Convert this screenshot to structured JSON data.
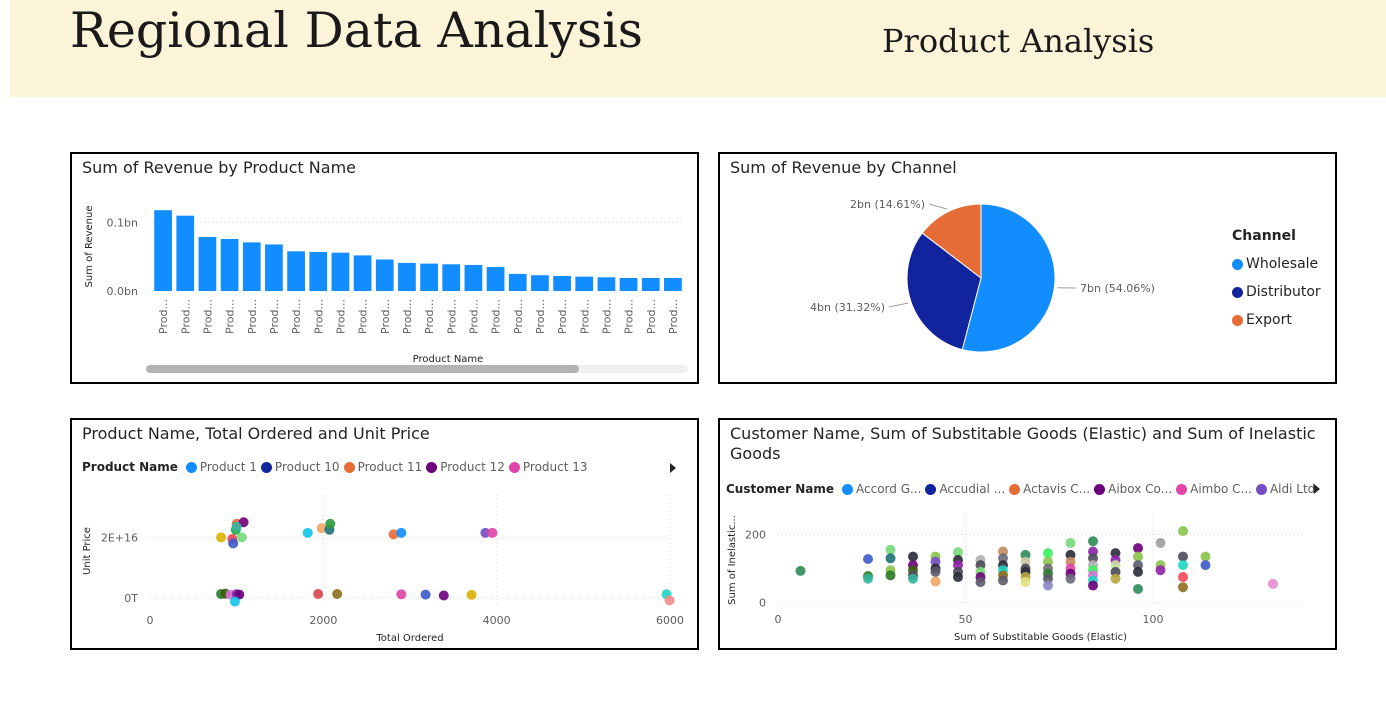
{
  "header": {
    "title": "Regional Data Analysis",
    "subtitle": "Product Analysis"
  },
  "colors": {
    "header_bg": "#fbf4d8",
    "bar": "#118DFF",
    "wholesale": "#118DFF",
    "distributor": "#12239E",
    "export": "#E66C37"
  },
  "chart_data": [
    {
      "type": "bar",
      "title": "Sum of Revenue by Product Name",
      "xlabel": "Product Name",
      "ylabel": "Sum of Revenue",
      "categories": [
        "Prod...",
        "Prod...",
        "Prod...",
        "Prod...",
        "Prod...",
        "Prod...",
        "Prod...",
        "Prod...",
        "Prod...",
        "Prod...",
        "Prod...",
        "Prod...",
        "Prod...",
        "Prod...",
        "Prod...",
        "Prod...",
        "Prod...",
        "Prod...",
        "Prod...",
        "Prod...",
        "Prod...",
        "Prod...",
        "Prod...",
        "Prod..."
      ],
      "values": [
        0.118,
        0.11,
        0.079,
        0.076,
        0.071,
        0.068,
        0.058,
        0.057,
        0.056,
        0.052,
        0.046,
        0.041,
        0.04,
        0.039,
        0.038,
        0.035,
        0.025,
        0.023,
        0.022,
        0.021,
        0.02,
        0.019,
        0.019,
        0.019
      ],
      "y_ticks": [
        {
          "v": 0,
          "label": "0.0bn"
        },
        {
          "v": 0.1,
          "label": "0.1bn"
        }
      ],
      "ylim": [
        0,
        0.13
      ]
    },
    {
      "type": "pie",
      "title": "Sum of Revenue by Channel",
      "legend_title": "Channel",
      "slices": [
        {
          "label": "Wholesale",
          "value": 54.06,
          "data_label": "7bn (54.06%)",
          "color": "#118DFF"
        },
        {
          "label": "Distributor",
          "value": 31.32,
          "data_label": "4bn (31.32%)",
          "color": "#12239E"
        },
        {
          "label": "Export",
          "value": 14.61,
          "data_label": "2bn (14.61%)",
          "color": "#E66C37"
        }
      ]
    },
    {
      "type": "scatter",
      "title": "Product Name, Total Ordered and Unit Price",
      "legend_title": "Product Name",
      "legend": [
        {
          "name": "Product 1",
          "color": "#118DFF"
        },
        {
          "name": "Product 10",
          "color": "#12239E"
        },
        {
          "name": "Product 11",
          "color": "#E66C37"
        },
        {
          "name": "Product 12",
          "color": "#6B007B"
        },
        {
          "name": "Product 13",
          "color": "#E044A7"
        }
      ],
      "xlabel": "Total Ordered",
      "ylabel": "Unit Price",
      "xlim": [
        0,
        6000
      ],
      "ylim": [
        -3000000000000000.0,
        3.4e+16
      ],
      "x_ticks": [
        {
          "v": 0,
          "label": "0"
        },
        {
          "v": 2000,
          "label": "2000"
        },
        {
          "v": 4000,
          "label": "4000"
        },
        {
          "v": 6000,
          "label": "6000"
        }
      ],
      "y_ticks": [
        {
          "v": 0,
          "label": "0T"
        },
        {
          "v": 2e+16,
          "label": "2E+16"
        }
      ],
      "points": [
        {
          "x": 820,
          "y": 2e+16,
          "c": "#D9B300"
        },
        {
          "x": 950,
          "y": 1.95e+16,
          "c": "#F5425A"
        },
        {
          "x": 960,
          "y": 1.8e+16,
          "c": "#3D5AC8"
        },
        {
          "x": 990,
          "y": 2.25e+16,
          "c": "#1AAB40"
        },
        {
          "x": 1000,
          "y": 2.45e+16,
          "c": "#E66C37"
        },
        {
          "x": 1080,
          "y": 2.5e+16,
          "c": "#6B007B"
        },
        {
          "x": 1060,
          "y": 2e+16,
          "c": "#76D97A"
        },
        {
          "x": 1000,
          "y": 2.35e+16,
          "c": "#36B6A0"
        },
        {
          "x": 1820,
          "y": 2.15e+16,
          "c": "#12C4E8"
        },
        {
          "x": 1980,
          "y": 2.3e+16,
          "c": "#F2A566"
        },
        {
          "x": 2070,
          "y": 2.25e+16,
          "c": "#197278"
        },
        {
          "x": 2080,
          "y": 2.45e+16,
          "c": "#2C9A3E"
        },
        {
          "x": 2810,
          "y": 2.1e+16,
          "c": "#E66C37"
        },
        {
          "x": 2900,
          "y": 2.15e+16,
          "c": "#118DFF"
        },
        {
          "x": 3870,
          "y": 2.15e+16,
          "c": "#744EC2"
        },
        {
          "x": 3950,
          "y": 2.15e+16,
          "c": "#E044A7"
        },
        {
          "x": 820,
          "y": 1300000000000000.0,
          "c": "#2C7A2C"
        },
        {
          "x": 870,
          "y": 1400000000000000.0,
          "c": "#3A5F0B"
        },
        {
          "x": 930,
          "y": 1100000000000000.0,
          "c": "#DA70D6"
        },
        {
          "x": 1000,
          "y": 1200000000000000.0,
          "c": "#8E24AA"
        },
        {
          "x": 1030,
          "y": 1100000000000000.0,
          "c": "#6B007B"
        },
        {
          "x": 980,
          "y": -1200000000000000.0,
          "c": "#12C4E8"
        },
        {
          "x": 1940,
          "y": 1300000000000000.0,
          "c": "#D64550"
        },
        {
          "x": 2160,
          "y": 1300000000000000.0,
          "c": "#8D6E1E"
        },
        {
          "x": 2900,
          "y": 1200000000000000.0,
          "c": "#E044A7"
        },
        {
          "x": 3180,
          "y": 1100000000000000.0,
          "c": "#3D5AC8"
        },
        {
          "x": 3390,
          "y": 800000000000000.0,
          "c": "#6B007B"
        },
        {
          "x": 3710,
          "y": 1000000000000000.0,
          "c": "#D9B300"
        },
        {
          "x": 5960,
          "y": 1200000000000000.0,
          "c": "#1DD6C4"
        },
        {
          "x": 5995,
          "y": -800000000000000.0,
          "c": "#F28B8B"
        }
      ]
    },
    {
      "type": "scatter",
      "title": "Customer Name, Sum of Substitable Goods (Elastic) and Sum of Inelastic Goods",
      "legend_title": "Customer Name",
      "legend": [
        {
          "name": "Accord G...",
          "color": "#118DFF"
        },
        {
          "name": "Accudial ...",
          "color": "#12239E"
        },
        {
          "name": "Actavis C...",
          "color": "#E66C37"
        },
        {
          "name": "Aibox Co...",
          "color": "#6B007B"
        },
        {
          "name": "Aimbo C...",
          "color": "#E044A7"
        },
        {
          "name": "Aldi Ltd",
          "color": "#744EC2"
        }
      ],
      "xlabel": "Sum of Substitable Goods (Elastic)",
      "ylabel": "Sum of Inelastic...",
      "xlim": [
        0,
        140
      ],
      "ylim": [
        -10,
        260
      ],
      "x_ticks": [
        {
          "v": 0,
          "label": "0"
        },
        {
          "v": 50,
          "label": "50"
        },
        {
          "v": 100,
          "label": "100"
        }
      ],
      "y_ticks": [
        {
          "v": 0,
          "label": "0"
        },
        {
          "v": 200,
          "label": "200"
        }
      ],
      "points": [
        {
          "x": 6,
          "y": 93,
          "c": "#2E8B57"
        },
        {
          "x": 24,
          "y": 128,
          "c": "#3D5AC8"
        },
        {
          "x": 24,
          "y": 78,
          "c": "#2C7A2C"
        },
        {
          "x": 24,
          "y": 70,
          "c": "#36B6A0"
        },
        {
          "x": 30,
          "y": 155,
          "c": "#76D97A"
        },
        {
          "x": 30,
          "y": 130,
          "c": "#197278"
        },
        {
          "x": 30,
          "y": 95,
          "c": "#8BC34A"
        },
        {
          "x": 30,
          "y": 80,
          "c": "#2C7A2C"
        },
        {
          "x": 36,
          "y": 135,
          "c": "#2B2B3A"
        },
        {
          "x": 36,
          "y": 110,
          "c": "#6B007B"
        },
        {
          "x": 36,
          "y": 95,
          "c": "#3A5F0B"
        },
        {
          "x": 36,
          "y": 80,
          "c": "#4A4A5A"
        },
        {
          "x": 36,
          "y": 70,
          "c": "#36B6A0"
        },
        {
          "x": 42,
          "y": 135,
          "c": "#8BC34A"
        },
        {
          "x": 42,
          "y": 120,
          "c": "#744EC2"
        },
        {
          "x": 42,
          "y": 100,
          "c": "#2B2B3A"
        },
        {
          "x": 42,
          "y": 90,
          "c": "#5A5A6A"
        },
        {
          "x": 42,
          "y": 62,
          "c": "#F2A566"
        },
        {
          "x": 48,
          "y": 148,
          "c": "#76D97A"
        },
        {
          "x": 48,
          "y": 125,
          "c": "#2B2B3A"
        },
        {
          "x": 48,
          "y": 110,
          "c": "#8E24AA"
        },
        {
          "x": 48,
          "y": 90,
          "c": "#4A4A5A"
        },
        {
          "x": 48,
          "y": 75,
          "c": "#2B2B3A"
        },
        {
          "x": 54,
          "y": 125,
          "c": "#B0B0B0"
        },
        {
          "x": 54,
          "y": 110,
          "c": "#4A4A5A"
        },
        {
          "x": 54,
          "y": 90,
          "c": "#76D97A"
        },
        {
          "x": 54,
          "y": 75,
          "c": "#6B007B"
        },
        {
          "x": 54,
          "y": 60,
          "c": "#5A5A6A"
        },
        {
          "x": 60,
          "y": 150,
          "c": "#C48A5A"
        },
        {
          "x": 60,
          "y": 130,
          "c": "#6B6B7B"
        },
        {
          "x": 60,
          "y": 110,
          "c": "#2B2B3A"
        },
        {
          "x": 60,
          "y": 95,
          "c": "#1DD6C4"
        },
        {
          "x": 60,
          "y": 80,
          "c": "#8D6E1E"
        },
        {
          "x": 60,
          "y": 65,
          "c": "#5A5A6A"
        },
        {
          "x": 66,
          "y": 140,
          "c": "#2E8B57"
        },
        {
          "x": 66,
          "y": 120,
          "c": "#C8C8A0"
        },
        {
          "x": 66,
          "y": 100,
          "c": "#4A4A5A"
        },
        {
          "x": 66,
          "y": 90,
          "c": "#2B2B3A"
        },
        {
          "x": 66,
          "y": 75,
          "c": "#B5A642"
        },
        {
          "x": 66,
          "y": 60,
          "c": "#E0E080"
        },
        {
          "x": 72,
          "y": 145,
          "c": "#3CF060"
        },
        {
          "x": 72,
          "y": 120,
          "c": "#8BC34A"
        },
        {
          "x": 72,
          "y": 100,
          "c": "#6B6B7B"
        },
        {
          "x": 72,
          "y": 85,
          "c": "#2C7A2C"
        },
        {
          "x": 72,
          "y": 70,
          "c": "#5A5A6A"
        },
        {
          "x": 72,
          "y": 50,
          "c": "#8888C8"
        },
        {
          "x": 78,
          "y": 175,
          "c": "#76D97A"
        },
        {
          "x": 78,
          "y": 140,
          "c": "#2B2B3A"
        },
        {
          "x": 78,
          "y": 120,
          "c": "#C48A5A"
        },
        {
          "x": 78,
          "y": 100,
          "c": "#E044A7"
        },
        {
          "x": 78,
          "y": 85,
          "c": "#6B007B"
        },
        {
          "x": 78,
          "y": 70,
          "c": "#6B6B7B"
        },
        {
          "x": 84,
          "y": 180,
          "c": "#2E8B57"
        },
        {
          "x": 84,
          "y": 150,
          "c": "#8E24AA"
        },
        {
          "x": 84,
          "y": 130,
          "c": "#4A4A5A"
        },
        {
          "x": 84,
          "y": 110,
          "c": "#B0B0B0"
        },
        {
          "x": 84,
          "y": 95,
          "c": "#3CF060"
        },
        {
          "x": 84,
          "y": 80,
          "c": "#DA70D6"
        },
        {
          "x": 84,
          "y": 65,
          "c": "#1DD6C4"
        },
        {
          "x": 84,
          "y": 50,
          "c": "#6B007B"
        },
        {
          "x": 90,
          "y": 145,
          "c": "#2B2B3A"
        },
        {
          "x": 90,
          "y": 125,
          "c": "#8E24AA"
        },
        {
          "x": 90,
          "y": 110,
          "c": "#C8E0A0"
        },
        {
          "x": 90,
          "y": 90,
          "c": "#4A4A5A"
        },
        {
          "x": 90,
          "y": 70,
          "c": "#B5A642"
        },
        {
          "x": 96,
          "y": 160,
          "c": "#6B007B"
        },
        {
          "x": 96,
          "y": 135,
          "c": "#8BC34A"
        },
        {
          "x": 96,
          "y": 110,
          "c": "#5A5A6A"
        },
        {
          "x": 96,
          "y": 90,
          "c": "#2B2B3A"
        },
        {
          "x": 96,
          "y": 40,
          "c": "#2E8B57"
        },
        {
          "x": 102,
          "y": 175,
          "c": "#9E9E9E"
        },
        {
          "x": 102,
          "y": 110,
          "c": "#8BC34A"
        },
        {
          "x": 102,
          "y": 95,
          "c": "#8E24AA"
        },
        {
          "x": 108,
          "y": 210,
          "c": "#8BC34A"
        },
        {
          "x": 108,
          "y": 135,
          "c": "#4A4A5A"
        },
        {
          "x": 108,
          "y": 110,
          "c": "#1DD6C4"
        },
        {
          "x": 108,
          "y": 75,
          "c": "#F5425A"
        },
        {
          "x": 108,
          "y": 45,
          "c": "#8D6E1E"
        },
        {
          "x": 114,
          "y": 135,
          "c": "#8BC34A"
        },
        {
          "x": 114,
          "y": 110,
          "c": "#3D5AC8"
        },
        {
          "x": 132,
          "y": 55,
          "c": "#E88BD0"
        }
      ]
    }
  ]
}
